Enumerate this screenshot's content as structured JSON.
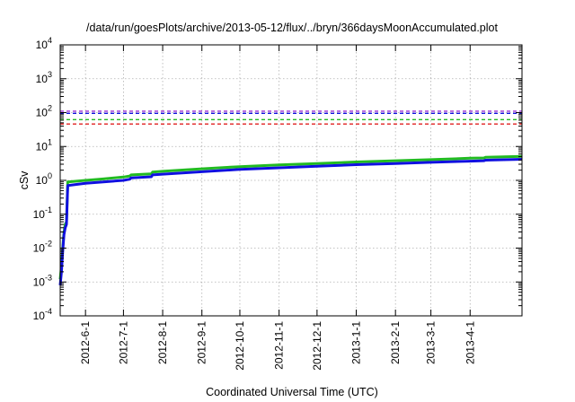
{
  "chart_data": {
    "type": "line",
    "title": "/data/run/goesPlots/archive/2013-05-12/flux/../bryn/366daysMoonAccumulated.plot",
    "xlabel": "Coordinated Universal Time (UTC)",
    "ylabel": "cSv",
    "y_scale": "log",
    "ylim": [
      0.0001,
      10000
    ],
    "xlim": [
      "2012-05-12",
      "2013-05-12"
    ],
    "grid": true,
    "y_ticks": [
      {
        "value": 0.0001,
        "base": "10",
        "exp": "-4"
      },
      {
        "value": 0.001,
        "base": "10",
        "exp": "-3"
      },
      {
        "value": 0.01,
        "base": "10",
        "exp": "-2"
      },
      {
        "value": 0.1,
        "base": "10",
        "exp": "-1"
      },
      {
        "value": 1,
        "base": "10",
        "exp": "0"
      },
      {
        "value": 10,
        "base": "10",
        "exp": "1"
      },
      {
        "value": 100,
        "base": "10",
        "exp": "2"
      },
      {
        "value": 1000,
        "base": "10",
        "exp": "3"
      },
      {
        "value": 10000,
        "base": "10",
        "exp": "4"
      }
    ],
    "x_ticks": [
      "2012-6-1",
      "2012-7-1",
      "2012-8-1",
      "2012-9-1",
      "2012-10-1",
      "2012-11-1",
      "2012-12-1",
      "2013-1-1",
      "2013-2-1",
      "2013-3-1",
      "2013-4-1"
    ],
    "thresholds": [
      {
        "value": 110,
        "color": "#9b30d0"
      },
      {
        "value": 95,
        "color": "#1010e0"
      },
      {
        "value": 62,
        "color": "#22bb22"
      },
      {
        "value": 46,
        "color": "#e02020"
      }
    ],
    "series": [
      {
        "color": "#22bb22",
        "points": [
          [
            "2012-05-12",
            0.0012
          ],
          [
            "2012-05-13",
            0.003
          ],
          [
            "2012-05-14",
            0.01
          ],
          [
            "2012-05-15",
            0.03
          ],
          [
            "2012-05-16",
            0.05
          ],
          [
            "2012-05-17",
            0.06
          ],
          [
            "2012-05-18",
            0.9
          ],
          [
            "2012-06-01",
            1.0
          ],
          [
            "2012-06-15",
            1.1
          ],
          [
            "2012-07-01",
            1.25
          ],
          [
            "2012-07-06",
            1.35
          ],
          [
            "2012-07-07",
            1.45
          ],
          [
            "2012-07-23",
            1.55
          ],
          [
            "2012-07-24",
            1.75
          ],
          [
            "2012-08-01",
            1.85
          ],
          [
            "2012-09-01",
            2.2
          ],
          [
            "2012-10-01",
            2.55
          ],
          [
            "2012-11-01",
            2.85
          ],
          [
            "2012-12-01",
            3.15
          ],
          [
            "2013-01-01",
            3.5
          ],
          [
            "2013-02-01",
            3.8
          ],
          [
            "2013-03-01",
            4.1
          ],
          [
            "2013-04-01",
            4.5
          ],
          [
            "2013-04-12",
            4.6
          ],
          [
            "2013-04-13",
            4.8
          ],
          [
            "2013-05-12",
            5.1
          ]
        ]
      },
      {
        "color": "#1010e0",
        "points": [
          [
            "2012-05-12",
            0.0008
          ],
          [
            "2012-05-13",
            0.002
          ],
          [
            "2012-05-14",
            0.008
          ],
          [
            "2012-05-15",
            0.025
          ],
          [
            "2012-05-16",
            0.04
          ],
          [
            "2012-05-17",
            0.05
          ],
          [
            "2012-05-18",
            0.7
          ],
          [
            "2012-06-01",
            0.82
          ],
          [
            "2012-06-15",
            0.9
          ],
          [
            "2012-07-01",
            1.0
          ],
          [
            "2012-07-06",
            1.08
          ],
          [
            "2012-07-07",
            1.18
          ],
          [
            "2012-07-23",
            1.28
          ],
          [
            "2012-07-24",
            1.45
          ],
          [
            "2012-08-01",
            1.52
          ],
          [
            "2012-09-01",
            1.8
          ],
          [
            "2012-10-01",
            2.1
          ],
          [
            "2012-11-01",
            2.35
          ],
          [
            "2012-12-01",
            2.62
          ],
          [
            "2013-01-01",
            2.9
          ],
          [
            "2013-02-01",
            3.15
          ],
          [
            "2013-03-01",
            3.4
          ],
          [
            "2013-04-01",
            3.7
          ],
          [
            "2013-04-12",
            3.8
          ],
          [
            "2013-04-13",
            3.95
          ],
          [
            "2013-05-12",
            4.2
          ]
        ]
      }
    ]
  }
}
